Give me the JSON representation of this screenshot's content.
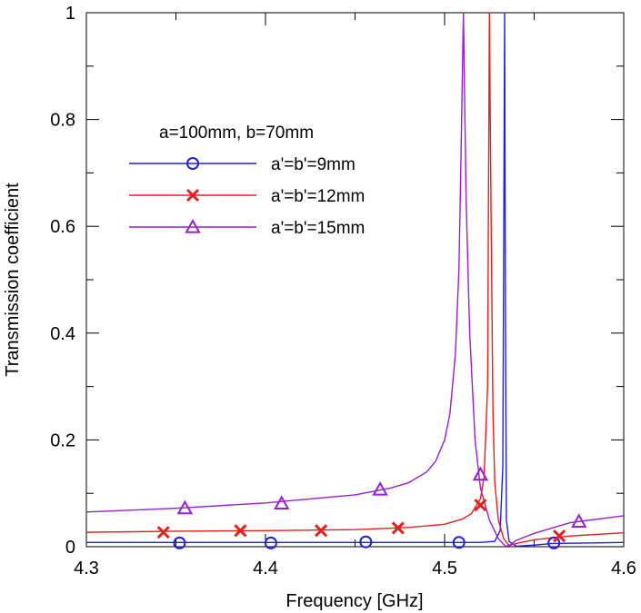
{
  "chart_data": {
    "type": "line",
    "title": "",
    "xlabel": "Frequency [GHz]",
    "ylabel": "Transmission coefficient",
    "xlim": [
      4.3,
      4.6
    ],
    "ylim": [
      0,
      1
    ],
    "xticks": [
      4.3,
      4.4,
      4.5,
      4.6
    ],
    "xtick_labels": [
      "4.3",
      "4.4",
      "4.5",
      "4.6"
    ],
    "yticks": [
      0,
      0.2,
      0.4,
      0.6,
      0.8,
      1
    ],
    "ytick_labels": [
      "0",
      "0.2",
      "0.4",
      "0.6",
      "0.8",
      "1"
    ],
    "grid": false,
    "legend": {
      "title": "a=100mm, b=70mm",
      "position": "upper-left",
      "entries": [
        "a'=b'=9mm",
        "a'=b'=12mm",
        "a'=b'=15mm"
      ]
    },
    "series": [
      {
        "name": "a'=b'=9mm",
        "color": "#1f1fe6",
        "marker": "circle",
        "x": [
          4.3,
          4.35,
          4.4,
          4.45,
          4.5,
          4.52,
          4.528,
          4.531,
          4.5325,
          4.5335,
          4.534,
          4.5345,
          4.536,
          4.54,
          4.55,
          4.56,
          4.6
        ],
        "values": [
          0.008,
          0.008,
          0.008,
          0.008,
          0.008,
          0.008,
          0.01,
          0.03,
          0.15,
          1.0,
          0.4,
          0.05,
          0.01,
          0.001,
          0.003,
          0.006,
          0.008
        ],
        "marker_x": [
          4.352,
          4.403,
          4.456,
          4.508,
          4.561
        ],
        "marker_values": [
          0.007,
          0.007,
          0.009,
          0.008,
          0.007
        ]
      },
      {
        "name": "a'=b'=12mm",
        "color": "#e61f1f",
        "marker": "x",
        "x": [
          4.3,
          4.35,
          4.4,
          4.45,
          4.48,
          4.5,
          4.51,
          4.515,
          4.52,
          4.522,
          4.524,
          4.525,
          4.526,
          4.527,
          4.528,
          4.53,
          4.533,
          4.536,
          4.54,
          4.55,
          4.57,
          4.6
        ],
        "values": [
          0.027,
          0.029,
          0.03,
          0.032,
          0.036,
          0.042,
          0.052,
          0.062,
          0.09,
          0.13,
          0.3,
          1.0,
          0.6,
          0.25,
          0.12,
          0.05,
          0.015,
          0.002,
          0.006,
          0.013,
          0.02,
          0.026
        ],
        "marker_x": [
          4.343,
          4.386,
          4.431,
          4.474,
          4.52,
          4.564
        ],
        "marker_values": [
          0.027,
          0.03,
          0.03,
          0.035,
          0.078,
          0.02
        ]
      },
      {
        "name": "a'=b'=15mm",
        "color": "#9a1fd0",
        "marker": "triangle",
        "x": [
          4.3,
          4.35,
          4.4,
          4.45,
          4.47,
          4.48,
          4.49,
          4.495,
          4.5,
          4.503,
          4.506,
          4.508,
          4.509,
          4.5105,
          4.512,
          4.514,
          4.517,
          4.52,
          4.525,
          4.53,
          4.534,
          4.536,
          4.54,
          4.55,
          4.57,
          4.6
        ],
        "values": [
          0.065,
          0.072,
          0.082,
          0.097,
          0.11,
          0.12,
          0.14,
          0.16,
          0.2,
          0.25,
          0.36,
          0.52,
          0.7,
          1.0,
          0.65,
          0.4,
          0.2,
          0.11,
          0.05,
          0.015,
          0.001,
          0.002,
          0.012,
          0.025,
          0.045,
          0.058
        ],
        "marker_x": [
          4.355,
          4.409,
          4.464,
          4.52,
          4.575
        ],
        "marker_values": [
          0.072,
          0.081,
          0.107,
          0.135,
          0.047
        ]
      }
    ]
  }
}
